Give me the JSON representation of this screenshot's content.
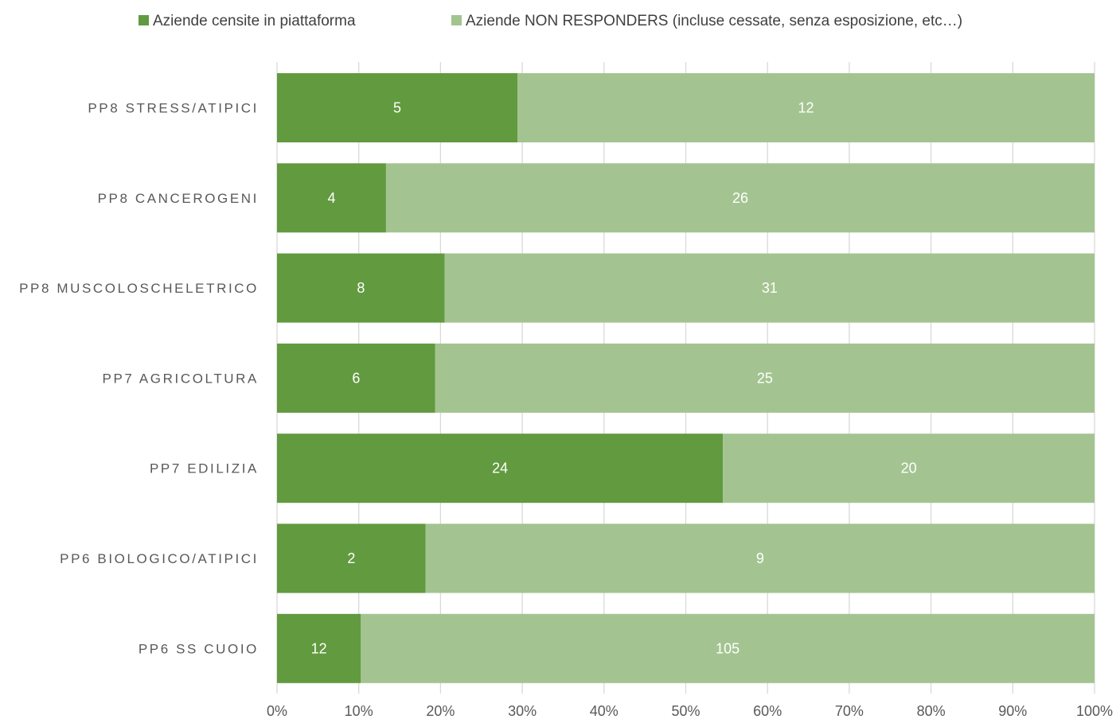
{
  "chart_data": {
    "type": "bar",
    "orientation": "horizontal",
    "stacking": "percent",
    "categories": [
      "PP8 STRESS/ATIPICI",
      "PP8 CANCEROGENI",
      "PP8 MUSCOLOSCHELETRICO",
      "PP7 AGRICOLTURA",
      "PP7 EDILIZIA",
      "PP6 BIOLOGICO/ATIPICI",
      "PP6 SS CUOIO"
    ],
    "series": [
      {
        "name": "Aziende censite in piattaforma",
        "color": "#629a3f",
        "values": [
          5,
          4,
          8,
          6,
          24,
          2,
          12
        ]
      },
      {
        "name": "Aziende NON RESPONDERS (incluse cessate, senza esposizione, etc…)",
        "color": "#a3c490",
        "values": [
          12,
          26,
          31,
          25,
          20,
          9,
          105
        ]
      }
    ],
    "x_ticks": [
      "0%",
      "10%",
      "20%",
      "30%",
      "40%",
      "50%",
      "60%",
      "70%",
      "80%",
      "90%",
      "100%"
    ],
    "xlim": [
      0,
      100
    ],
    "grid": "vertical",
    "legend_position": "top",
    "data_labels": true
  }
}
